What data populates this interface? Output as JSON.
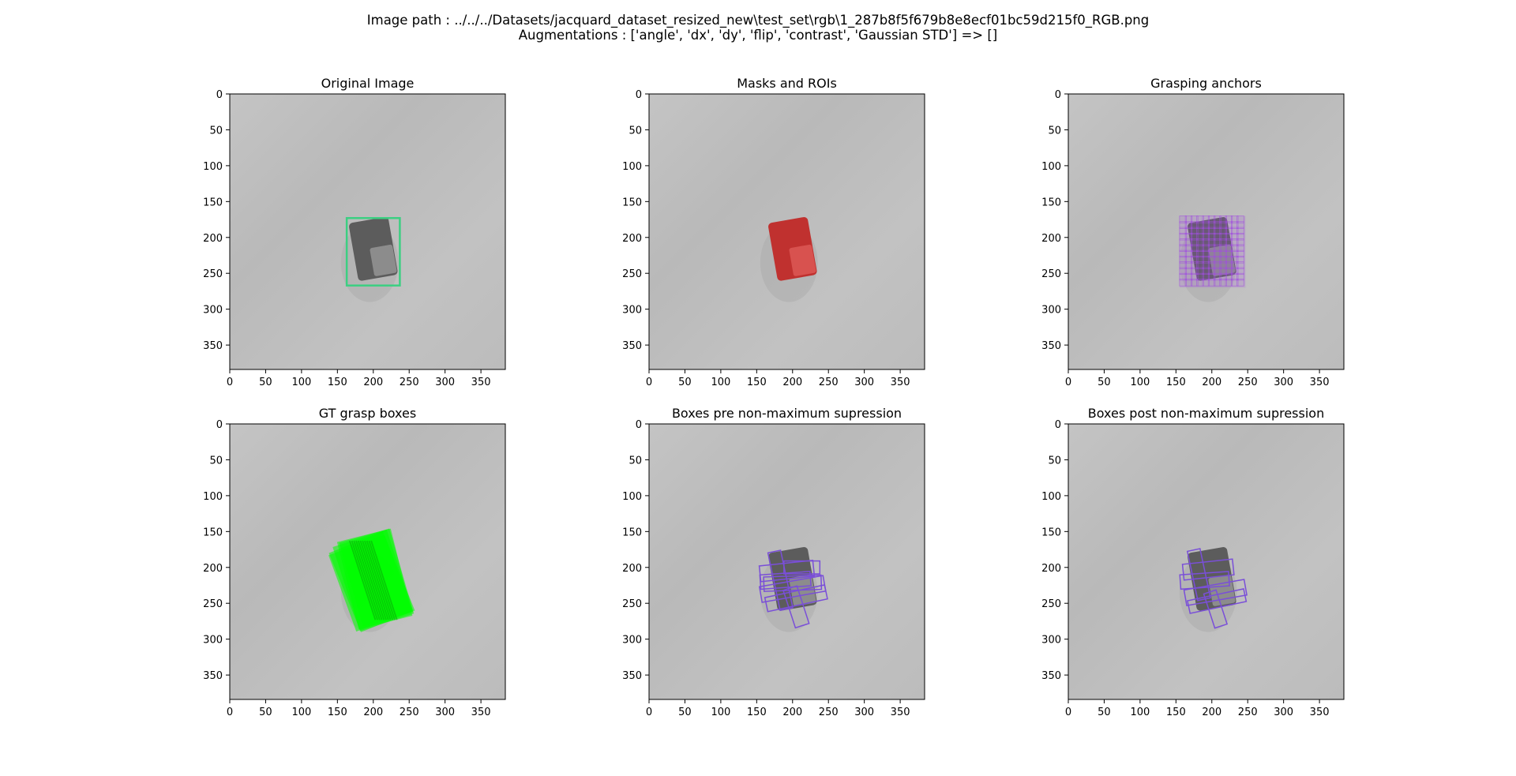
{
  "header": {
    "line1": "Image path : ../../../Datasets/jacquard_dataset_resized_new\\test_set\\rgb\\1_287b8f5f679b8e8ecf01bc59d215f0_RGB.png",
    "line2": "Augmentations : ['angle', 'dx', 'dy', 'flip', 'contrast', 'Gaussian STD'] => []"
  },
  "axis": {
    "range": [
      0,
      384
    ],
    "xticks": [
      0,
      50,
      100,
      150,
      200,
      250,
      300,
      350
    ],
    "yticks": [
      0,
      50,
      100,
      150,
      200,
      250,
      300,
      350
    ]
  },
  "colors": {
    "background": "#bdbdbd",
    "object_dark": "#5c5c5c",
    "object_light": "#8c8c8c",
    "roi_box": "#3ccf82",
    "mask": "#c0312f",
    "mask_light": "#d8524f",
    "anchor": "#a14fe0",
    "anchor_alt": "#d04ad8",
    "gt_box": "#00ff00",
    "pred_box": "#7a4fd8"
  },
  "panels": [
    {
      "id": "original",
      "title": "Original Image",
      "layers": [
        "object",
        "roi"
      ]
    },
    {
      "id": "masks",
      "title": "Masks and ROIs",
      "layers": [
        "mask"
      ]
    },
    {
      "id": "anchors",
      "title": "Grasping anchors",
      "layers": [
        "object",
        "anchors"
      ]
    },
    {
      "id": "gt",
      "title": "GT grasp boxes",
      "layers": [
        "gt"
      ]
    },
    {
      "id": "pre-nms",
      "title": "Boxes pre non-maximum supression",
      "layers": [
        "object",
        "pre"
      ]
    },
    {
      "id": "post-nms",
      "title": "Boxes post non-maximum supression",
      "layers": [
        "object",
        "post"
      ]
    }
  ],
  "object": {
    "body": {
      "cx": 200,
      "cy": 216,
      "w": 56,
      "h": 82,
      "angle": -10
    },
    "cap": {
      "cx": 214,
      "cy": 232,
      "w": 32,
      "h": 40,
      "angle": -10
    }
  },
  "roi_box": {
    "x": 163,
    "y": 173,
    "w": 74,
    "h": 94
  },
  "anchor_region": {
    "x": 155,
    "y": 170,
    "w": 92,
    "h": 100
  },
  "gt_boxes": [
    {
      "cx": 200,
      "cy": 218,
      "w": 78,
      "h": 122,
      "angle": -18
    },
    {
      "cx": 198,
      "cy": 220,
      "w": 80,
      "h": 118,
      "angle": -22
    },
    {
      "cx": 202,
      "cy": 216,
      "w": 76,
      "h": 124,
      "angle": -14
    },
    {
      "cx": 196,
      "cy": 222,
      "w": 82,
      "h": 112,
      "angle": -20
    },
    {
      "cx": 204,
      "cy": 214,
      "w": 72,
      "h": 120,
      "angle": -16
    }
  ],
  "pred_boxes_pre": [
    {
      "cx": 192,
      "cy": 205,
      "w": 75,
      "h": 22,
      "angle": -6
    },
    {
      "cx": 190,
      "cy": 218,
      "w": 70,
      "h": 20,
      "angle": -4
    },
    {
      "cx": 200,
      "cy": 230,
      "w": 90,
      "h": 22,
      "angle": -10
    },
    {
      "cx": 205,
      "cy": 243,
      "w": 85,
      "h": 20,
      "angle": -12
    },
    {
      "cx": 183,
      "cy": 218,
      "w": 18,
      "h": 82,
      "angle": -12
    },
    {
      "cx": 205,
      "cy": 255,
      "w": 20,
      "h": 55,
      "angle": -18
    },
    {
      "cx": 200,
      "cy": 222,
      "w": 80,
      "h": 20,
      "angle": -2
    },
    {
      "cx": 213,
      "cy": 200,
      "w": 50,
      "h": 18,
      "angle": 0
    }
  ],
  "pred_boxes_post": [
    {
      "cx": 195,
      "cy": 203,
      "w": 70,
      "h": 22,
      "angle": -6
    },
    {
      "cx": 190,
      "cy": 218,
      "w": 68,
      "h": 20,
      "angle": -4
    },
    {
      "cx": 205,
      "cy": 235,
      "w": 85,
      "h": 22,
      "angle": -10
    },
    {
      "cx": 182,
      "cy": 210,
      "w": 18,
      "h": 70,
      "angle": -12
    },
    {
      "cx": 205,
      "cy": 258,
      "w": 18,
      "h": 50,
      "angle": -18
    },
    {
      "cx": 207,
      "cy": 247,
      "w": 80,
      "h": 18,
      "angle": -12
    }
  ]
}
